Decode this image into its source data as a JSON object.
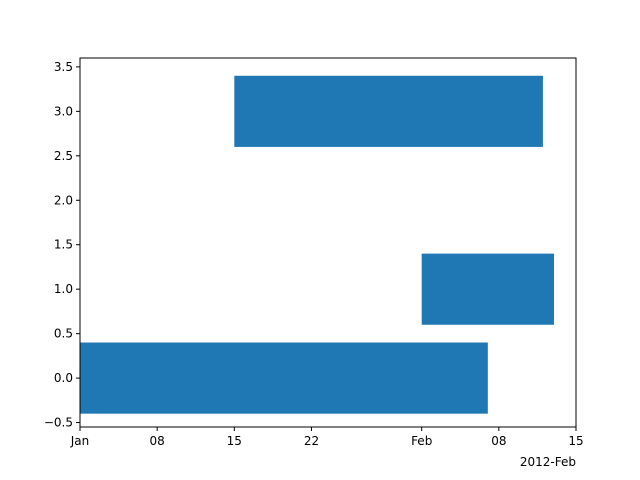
{
  "chart_data": {
    "type": "bar",
    "orientation": "horizontal",
    "x_axis": {
      "scale": "date",
      "range": [
        "2012-01-01",
        "2012-02-15"
      ],
      "ticks": [
        {
          "date": "2012-01-01",
          "label": "Jan"
        },
        {
          "date": "2012-01-08",
          "label": "08"
        },
        {
          "date": "2012-01-15",
          "label": "15"
        },
        {
          "date": "2012-01-22",
          "label": "22"
        },
        {
          "date": "2012-02-01",
          "label": "Feb"
        },
        {
          "date": "2012-02-08",
          "label": "08"
        },
        {
          "date": "2012-02-15",
          "label": "15"
        }
      ],
      "offset_label": "2012-Feb"
    },
    "y_axis": {
      "range": [
        -0.55,
        3.6
      ],
      "ticks": [
        -0.5,
        0.0,
        0.5,
        1.0,
        1.5,
        2.0,
        2.5,
        3.0,
        3.5
      ],
      "tick_labels": [
        "−0.5",
        "0.0",
        "0.5",
        "1.0",
        "1.5",
        "2.0",
        "2.5",
        "3.0",
        "3.5"
      ]
    },
    "bars": [
      {
        "y": 0,
        "height": 0.8,
        "start": "2012-01-01",
        "end": "2012-02-07"
      },
      {
        "y": 1,
        "height": 0.8,
        "start": "2012-02-01",
        "end": "2012-02-13"
      },
      {
        "y": 3,
        "height": 0.8,
        "start": "2012-01-15",
        "end": "2012-02-12"
      }
    ],
    "bar_color": "#1f77b4",
    "grid": false,
    "legend": "none"
  }
}
